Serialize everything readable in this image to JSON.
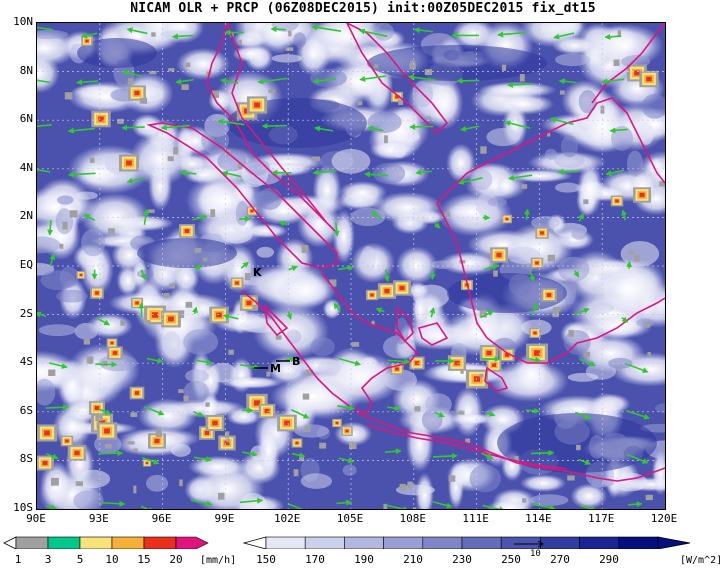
{
  "title": "NICAM OLR + PRCP (06Z08DEC2015) init:00Z05DEC2015 fix_dt15",
  "lat_labels": [
    "10N",
    "8N",
    "6N",
    "4N",
    "2N",
    "EQ",
    "2S",
    "4S",
    "6S",
    "8S",
    "10S"
  ],
  "lon_labels": [
    "90E",
    "93E",
    "96E",
    "99E",
    "102E",
    "105E",
    "108E",
    "111E",
    "114E",
    "117E",
    "120E"
  ],
  "station_labels": [
    "K",
    "M",
    "B"
  ],
  "precip_colorbar": {
    "ticks": [
      "1",
      "3",
      "5",
      "10",
      "15",
      "20"
    ],
    "unit": "[mm/h]",
    "colors": [
      "#a0a0a0",
      "#00c78c",
      "#f8e27a",
      "#f5b03a",
      "#e8301c",
      "#e0147f"
    ]
  },
  "olr_colorbar": {
    "ticks": [
      "150",
      "170",
      "190",
      "210",
      "230",
      "250",
      "270",
      "290"
    ],
    "unit": "[W/m^2]",
    "colors": [
      "#ffffff",
      "#e6e7f5",
      "#cdd0ec",
      "#b3b7e0",
      "#999fd4",
      "#7f86c8",
      "#656dbb",
      "#4b54ae",
      "#323ca1",
      "#1a2492",
      "#050f7f"
    ]
  },
  "vector_reference": "10",
  "colors": {
    "coastline": "#e0147f",
    "wind_vector": "#2fc92f",
    "ocean_olr": "#4a52ae"
  }
}
